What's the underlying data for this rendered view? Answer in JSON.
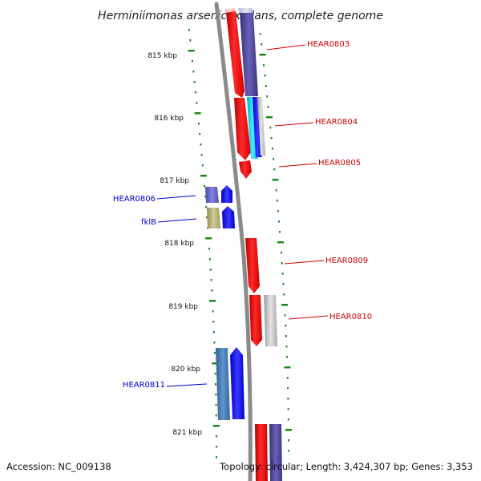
{
  "title": "Herminiimonas arsenicoxydans, complete genome",
  "footer": {
    "accession": "Accession: NC_009138",
    "topology": "Topology: circular; Length: 3,424,307 bp; Genes: 3,353"
  },
  "colors": {
    "forward_label": "#cc0000",
    "reverse_label": "#0000cc",
    "backbone": "#8a8a8a",
    "ticks": "#1a8a1a"
  },
  "kbp_ticks": [
    "815 kbp",
    "816 kbp",
    "817 kbp",
    "818 kbp",
    "819 kbp",
    "820 kbp",
    "821 kbp"
  ],
  "gene_labels": {
    "hear0803": "HEAR0803",
    "hear0804": "HEAR0804",
    "hear0805": "HEAR0805",
    "hear0806": "HEAR0806",
    "fklb": "fklB",
    "hear0809": "HEAR0809",
    "hear0810": "HEAR0810",
    "hear0811": "HEAR0811"
  }
}
